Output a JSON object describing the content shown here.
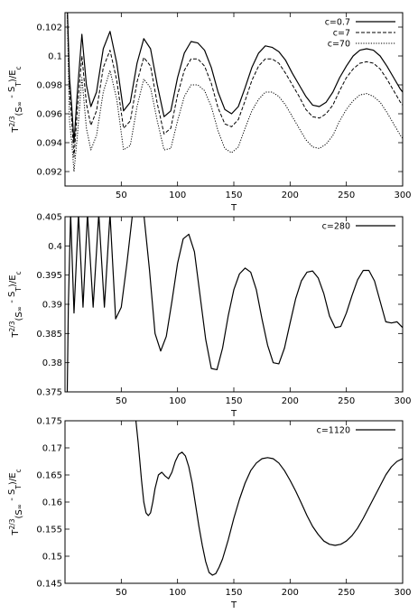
{
  "chart_data": [
    {
      "type": "line",
      "xlabel": "T",
      "ylabel": [
        "T",
        "2/3",
        "(S",
        "∞",
        " - S",
        "T",
        ")/E",
        "c"
      ],
      "xlim": [
        0,
        300
      ],
      "ylim": [
        0.091,
        0.103
      ],
      "xticks": [
        "50",
        "100",
        "150",
        "200",
        "250",
        "300"
      ],
      "xtick_values": [
        50,
        100,
        150,
        200,
        250,
        300
      ],
      "yticks": [
        "0.092",
        "0.094",
        "0.096",
        "0.098",
        "0.1",
        "0.102"
      ],
      "ytick_values": [
        0.092,
        0.094,
        0.096,
        0.098,
        0.1,
        0.102
      ],
      "grid": false,
      "legend_position": "top-right",
      "series": [
        {
          "name": "c=0.7",
          "style": "solid",
          "x": [
            2,
            4,
            6,
            8,
            11,
            15,
            19,
            23,
            28,
            34,
            40,
            46,
            52,
            58,
            64,
            70,
            76,
            82,
            88,
            94,
            100,
            106,
            112,
            118,
            124,
            130,
            136,
            142,
            148,
            154,
            160,
            166,
            172,
            178,
            184,
            190,
            196,
            202,
            208,
            214,
            220,
            226,
            232,
            238,
            244,
            250,
            256,
            262,
            268,
            274,
            280,
            286,
            292,
            298,
            300
          ],
          "y": [
            0.1035,
            0.0985,
            0.0965,
            0.094,
            0.0975,
            0.1015,
            0.098,
            0.0965,
            0.0975,
            0.1005,
            0.1017,
            0.0995,
            0.0962,
            0.0968,
            0.0995,
            0.1012,
            0.1005,
            0.098,
            0.0958,
            0.0962,
            0.0985,
            0.1002,
            0.101,
            0.1009,
            0.1004,
            0.0992,
            0.0975,
            0.0963,
            0.096,
            0.0965,
            0.0978,
            0.0992,
            0.1002,
            0.1007,
            0.1006,
            0.1003,
            0.0997,
            0.0988,
            0.098,
            0.0972,
            0.0966,
            0.0965,
            0.0968,
            0.0975,
            0.0985,
            0.0993,
            0.1,
            0.1004,
            0.1005,
            0.1004,
            0.1,
            0.0993,
            0.0985,
            0.0977,
            0.0975
          ]
        },
        {
          "name": "c=7",
          "style": "dashed",
          "x": [
            2,
            4,
            6,
            8,
            11,
            15,
            19,
            23,
            28,
            34,
            40,
            46,
            52,
            58,
            64,
            70,
            76,
            82,
            88,
            94,
            100,
            106,
            112,
            118,
            124,
            130,
            136,
            142,
            148,
            154,
            160,
            166,
            172,
            178,
            184,
            190,
            196,
            202,
            208,
            214,
            220,
            226,
            232,
            238,
            244,
            250,
            256,
            262,
            268,
            274,
            280,
            286,
            292,
            298,
            300
          ],
          "y": [
            0.1032,
            0.0975,
            0.0955,
            0.093,
            0.0963,
            0.1,
            0.0967,
            0.0952,
            0.0962,
            0.0992,
            0.1004,
            0.0983,
            0.095,
            0.0955,
            0.0982,
            0.0999,
            0.0993,
            0.0967,
            0.0946,
            0.095,
            0.0973,
            0.099,
            0.0998,
            0.0998,
            0.0993,
            0.0981,
            0.0964,
            0.0953,
            0.0951,
            0.0956,
            0.0969,
            0.0983,
            0.0993,
            0.0998,
            0.0998,
            0.0995,
            0.0988,
            0.098,
            0.0972,
            0.0963,
            0.0958,
            0.0957,
            0.096,
            0.0966,
            0.0976,
            0.0985,
            0.0991,
            0.0995,
            0.0996,
            0.0995,
            0.0991,
            0.0984,
            0.0976,
            0.0968,
            0.0966
          ]
        },
        {
          "name": "c=70",
          "style": "dotted",
          "x": [
            2,
            4,
            6,
            8,
            11,
            15,
            19,
            23,
            28,
            34,
            40,
            46,
            52,
            58,
            64,
            70,
            76,
            82,
            88,
            94,
            100,
            106,
            112,
            118,
            124,
            130,
            136,
            142,
            148,
            154,
            160,
            166,
            172,
            178,
            184,
            190,
            196,
            202,
            208,
            214,
            220,
            226,
            232,
            238,
            244,
            250,
            256,
            262,
            268,
            274,
            280,
            286,
            292,
            298,
            300
          ],
          "y": [
            0.103,
            0.0955,
            0.094,
            0.092,
            0.0945,
            0.0985,
            0.095,
            0.0935,
            0.0945,
            0.0975,
            0.099,
            0.097,
            0.0935,
            0.0938,
            0.0965,
            0.0984,
            0.0978,
            0.0955,
            0.0935,
            0.0936,
            0.0955,
            0.0972,
            0.098,
            0.098,
            0.0976,
            0.0965,
            0.0948,
            0.0936,
            0.0933,
            0.0937,
            0.095,
            0.0962,
            0.097,
            0.0975,
            0.0975,
            0.0972,
            0.0966,
            0.0958,
            0.095,
            0.0942,
            0.0937,
            0.0936,
            0.0939,
            0.0945,
            0.0955,
            0.0963,
            0.0969,
            0.0973,
            0.0974,
            0.0972,
            0.0968,
            0.0961,
            0.0953,
            0.0945,
            0.0943
          ]
        }
      ]
    },
    {
      "type": "line",
      "xlabel": "T",
      "ylabel": [
        "T",
        "2/3",
        "(S",
        "∞",
        " - S",
        "T",
        ")/E",
        "c"
      ],
      "xlim": [
        0,
        300
      ],
      "ylim": [
        0.375,
        0.405
      ],
      "xticks": [
        "50",
        "100",
        "150",
        "200",
        "250",
        "300"
      ],
      "xtick_values": [
        50,
        100,
        150,
        200,
        250,
        300
      ],
      "yticks": [
        "0.375",
        "0.38",
        "0.385",
        "0.39",
        "0.395",
        "0.4",
        "0.405"
      ],
      "ytick_values": [
        0.375,
        0.38,
        0.385,
        0.39,
        0.395,
        0.4,
        0.405
      ],
      "grid": false,
      "legend_position": "top-right",
      "series": [
        {
          "name": "c=280",
          "style": "solid",
          "x": [
            2,
            3,
            5,
            8,
            12,
            16,
            20,
            25,
            30,
            35,
            40,
            45,
            50,
            55,
            60,
            65,
            70,
            75,
            80,
            85,
            90,
            95,
            100,
            105,
            110,
            115,
            120,
            125,
            130,
            135,
            140,
            145,
            150,
            155,
            160,
            165,
            170,
            175,
            180,
            185,
            190,
            195,
            200,
            205,
            210,
            215,
            220,
            225,
            230,
            235,
            240,
            245,
            250,
            255,
            260,
            265,
            270,
            275,
            280,
            285,
            290,
            295,
            300
          ],
          "y": [
            0.375,
            0.39,
            0.4055,
            0.3885,
            0.4055,
            0.3895,
            0.4055,
            0.3895,
            0.4055,
            0.3895,
            0.4055,
            0.3875,
            0.3895,
            0.397,
            0.4055,
            0.4055,
            0.4055,
            0.396,
            0.385,
            0.382,
            0.3845,
            0.3905,
            0.397,
            0.4012,
            0.402,
            0.399,
            0.3915,
            0.384,
            0.379,
            0.3788,
            0.3825,
            0.388,
            0.3925,
            0.3952,
            0.3962,
            0.3955,
            0.3925,
            0.3875,
            0.383,
            0.38,
            0.3798,
            0.3825,
            0.3868,
            0.391,
            0.394,
            0.3955,
            0.3957,
            0.3945,
            0.3918,
            0.388,
            0.386,
            0.3862,
            0.3885,
            0.3915,
            0.3942,
            0.3958,
            0.3958,
            0.394,
            0.3905,
            0.387,
            0.3868,
            0.387,
            0.386
          ]
        }
      ]
    },
    {
      "type": "line",
      "xlabel": "T",
      "ylabel": [
        "T",
        "2/3",
        "(S",
        "∞",
        " - S",
        "T",
        ")/E",
        "c"
      ],
      "xlim": [
        0,
        300
      ],
      "ylim": [
        0.145,
        0.175
      ],
      "xticks": [
        "50",
        "100",
        "150",
        "200",
        "250",
        "300"
      ],
      "xtick_values": [
        50,
        100,
        150,
        200,
        250,
        300
      ],
      "yticks": [
        "0.145",
        "0.15",
        "0.155",
        "0.16",
        "0.165",
        "0.17",
        "0.175"
      ],
      "ytick_values": [
        0.145,
        0.15,
        0.155,
        0.16,
        0.165,
        0.17,
        0.175
      ],
      "grid": false,
      "legend_position": "top-right",
      "series": [
        {
          "name": "c=1120",
          "style": "solid",
          "x": [
            63,
            65,
            68,
            70,
            72,
            74,
            76,
            78,
            80,
            83,
            86,
            89,
            92,
            95,
            98,
            101,
            104,
            107,
            110,
            113,
            116,
            119,
            122,
            125,
            128,
            131,
            134,
            137,
            140,
            145,
            150,
            155,
            160,
            165,
            170,
            175,
            180,
            185,
            190,
            195,
            200,
            205,
            210,
            215,
            220,
            225,
            230,
            235,
            240,
            245,
            250,
            255,
            260,
            265,
            270,
            275,
            280,
            285,
            290,
            295,
            300
          ],
          "y": [
            0.175,
            0.171,
            0.164,
            0.16,
            0.158,
            0.1575,
            0.158,
            0.16,
            0.1625,
            0.165,
            0.1655,
            0.1648,
            0.1643,
            0.1655,
            0.1675,
            0.1688,
            0.1692,
            0.1685,
            0.1665,
            0.1635,
            0.1595,
            0.1555,
            0.152,
            0.149,
            0.147,
            0.1465,
            0.1468,
            0.148,
            0.1495,
            0.153,
            0.157,
            0.1605,
            0.1635,
            0.1658,
            0.1672,
            0.168,
            0.1682,
            0.168,
            0.1672,
            0.1658,
            0.164,
            0.162,
            0.1598,
            0.1575,
            0.1555,
            0.154,
            0.1528,
            0.1522,
            0.152,
            0.1522,
            0.1528,
            0.1538,
            0.1552,
            0.157,
            0.159,
            0.161,
            0.163,
            0.165,
            0.1665,
            0.1675,
            0.168
          ]
        }
      ]
    }
  ]
}
